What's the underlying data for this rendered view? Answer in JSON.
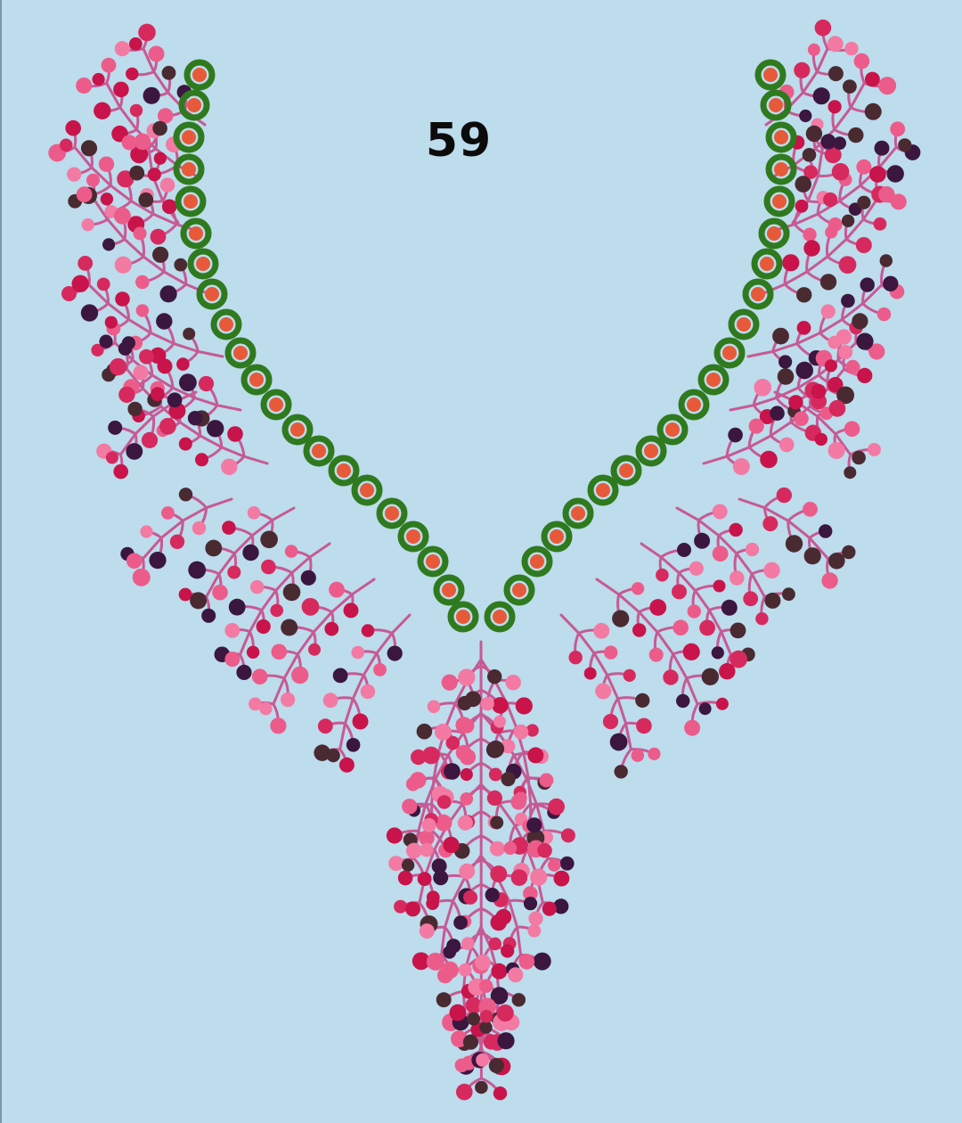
{
  "design": {
    "number": "59"
  },
  "palette": {
    "background": "#bddcec",
    "stem": "#c65a94",
    "dot_colors": [
      "#ec5c8a",
      "#f27aa3",
      "#c8144a",
      "#3b1740",
      "#4a2a31",
      "#d62a5e"
    ],
    "ring_outer": "#2f7a1e",
    "ring_inner": "#e65a3a"
  }
}
